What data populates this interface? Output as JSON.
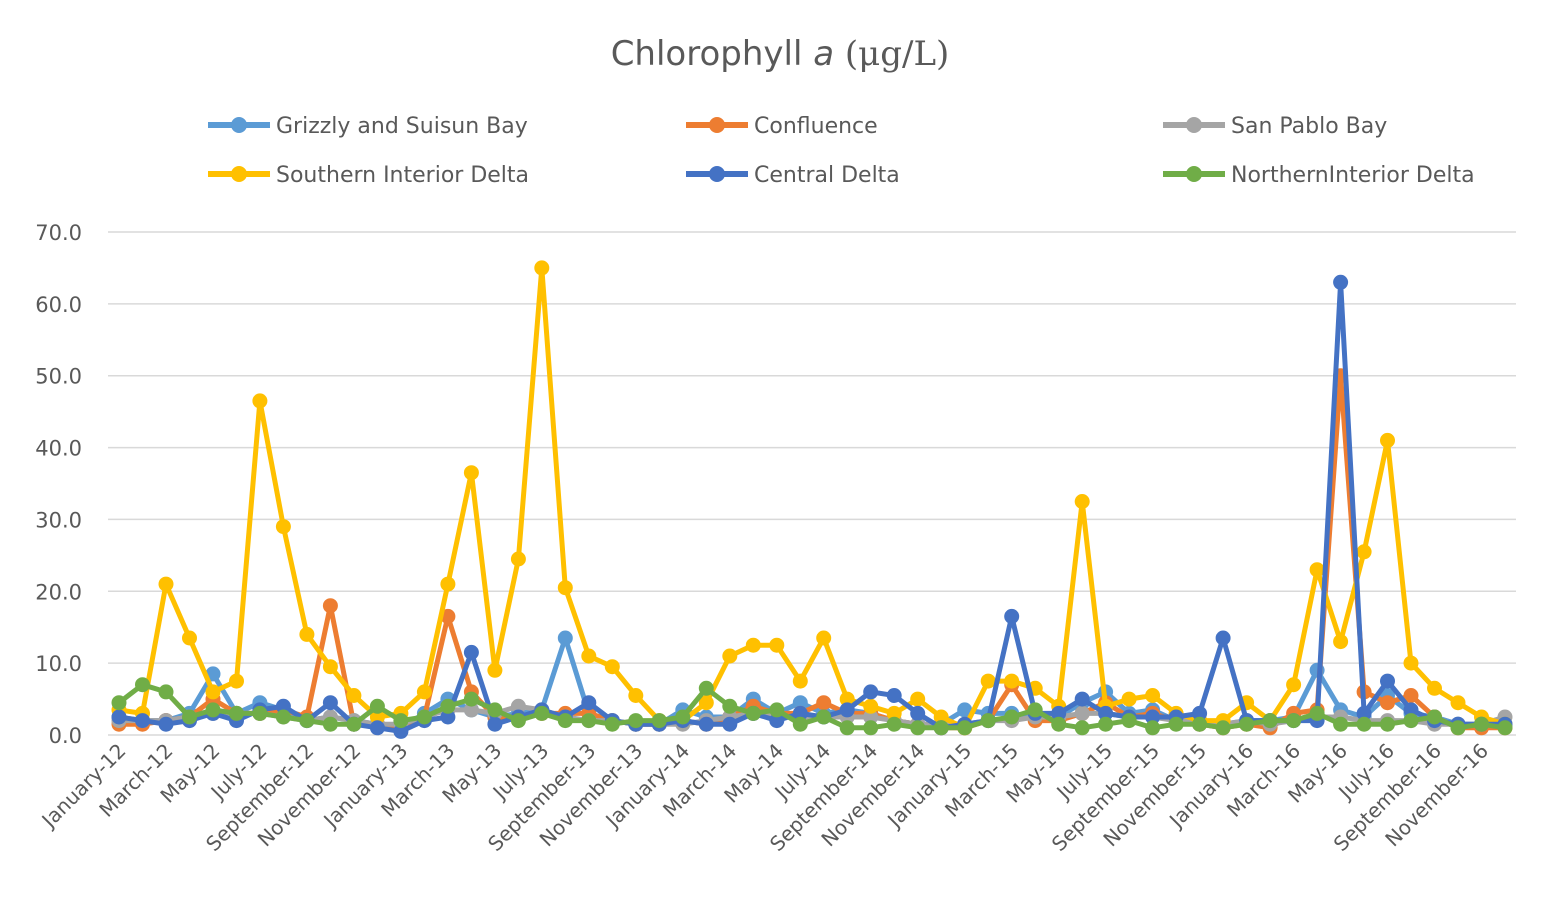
{
  "chart_data": {
    "type": "line",
    "title": {
      "prefix": "Chlorophyll ",
      "italic": "a",
      "unit": " (μg/L)"
    },
    "xlabel": "",
    "ylabel": "",
    "ylim": [
      0,
      70
    ],
    "yticks": [
      "0.0",
      "10.0",
      "20.0",
      "30.0",
      "40.0",
      "50.0",
      "60.0",
      "70.0"
    ],
    "grid": true,
    "legend_position": "top",
    "x": [
      "January-12",
      "February-12",
      "March-12",
      "April-12",
      "May-12",
      "June-12",
      "July-12",
      "August-12",
      "September-12",
      "October-12",
      "November-12",
      "December-12",
      "January-13",
      "February-13",
      "March-13",
      "April-13",
      "May-13",
      "June-13",
      "July-13",
      "August-13",
      "September-13",
      "October-13",
      "November-13",
      "December-13",
      "January-14",
      "February-14",
      "March-14",
      "April-14",
      "May-14",
      "June-14",
      "July-14",
      "August-14",
      "September-14",
      "October-14",
      "November-14",
      "December-14",
      "January-15",
      "February-15",
      "March-15",
      "April-15",
      "May-15",
      "June-15",
      "July-15",
      "August-15",
      "September-15",
      "October-15",
      "November-15",
      "December-15",
      "January-16",
      "February-16",
      "March-16",
      "April-16",
      "May-16",
      "June-16",
      "July-16",
      "August-16",
      "September-16",
      "October-16",
      "November-16",
      "December-16"
    ],
    "xtick_labels": [
      "January-12",
      "March-12",
      "May-12",
      "July-12",
      "September-12",
      "November-12",
      "January-13",
      "March-13",
      "May-13",
      "July-13",
      "September-13",
      "November-13",
      "January-14",
      "March-14",
      "May-14",
      "July-14",
      "September-14",
      "November-14",
      "January-15",
      "March-15",
      "May-15",
      "July-15",
      "September-15",
      "November-15",
      "January-16",
      "March-16",
      "May-16",
      "July-16",
      "September-16",
      "November-16"
    ],
    "series": [
      {
        "name": "Grizzly and Suisun Bay",
        "color": "#5B9BD5",
        "values": [
          2.5,
          2,
          2,
          3,
          8.5,
          3,
          4.5,
          3.5,
          2,
          2.5,
          2,
          1.5,
          1,
          3,
          5,
          3.5,
          2.5,
          3,
          3.5,
          13.5,
          3,
          2,
          1.5,
          1.5,
          3.5,
          2.5,
          2.5,
          5,
          3,
          4.5,
          3,
          3.5,
          3,
          2,
          1.5,
          1.5,
          3.5,
          3,
          3,
          2.5,
          2.5,
          4.5,
          6,
          3,
          3.5,
          2,
          1.5,
          1.5,
          2,
          2,
          2.5,
          9,
          3.5,
          2.5,
          5.5,
          3,
          2.5,
          1.5,
          1.5,
          1.5
        ]
      },
      {
        "name": "Confluence",
        "color": "#ED7D31",
        "values": [
          1.5,
          1.5,
          2,
          2.5,
          5,
          3,
          3,
          3.5,
          2.5,
          18,
          1.5,
          1.5,
          1,
          2.5,
          16.5,
          6,
          2.5,
          2.5,
          3,
          3,
          3,
          2,
          1.5,
          1.5,
          2,
          1.5,
          2.5,
          4,
          3,
          3,
          4.5,
          3,
          3,
          2,
          1.5,
          1,
          1,
          2,
          7,
          2,
          2,
          3,
          4.5,
          2.5,
          3,
          2,
          1.5,
          1,
          1.5,
          1,
          3,
          3.5,
          50,
          6,
          4.5,
          5.5,
          2.5,
          1,
          1,
          1
        ]
      },
      {
        "name": "San Pablo Bay",
        "color": "#A5A5A5",
        "values": [
          2,
          2,
          2,
          2.5,
          3,
          3,
          3,
          2.5,
          2,
          2.5,
          2,
          1.5,
          1.5,
          2.5,
          3.5,
          3.5,
          3,
          4,
          3.5,
          2.5,
          2,
          2,
          1.5,
          1.5,
          1.5,
          2,
          2.5,
          3,
          2.5,
          2.5,
          2.5,
          2.5,
          2.5,
          2,
          1.5,
          1.5,
          1.5,
          2,
          2,
          2.5,
          2.5,
          3,
          3,
          2.5,
          2.5,
          2,
          2,
          1.5,
          2,
          1.5,
          2,
          2.5,
          2.5,
          2,
          2,
          2,
          1.5,
          1.5,
          1.5,
          2.5
        ]
      },
      {
        "name": "Southern Interior Delta",
        "color": "#FFC000",
        "values": [
          3.5,
          3,
          21,
          13.5,
          6,
          7.5,
          46.5,
          29,
          14,
          9.5,
          5.5,
          2.5,
          3,
          6,
          21,
          36.5,
          9,
          24.5,
          65,
          20.5,
          11,
          9.5,
          5.5,
          2,
          2,
          4.5,
          11,
          12.5,
          12.5,
          7.5,
          13.5,
          5,
          4,
          3,
          5,
          2.5,
          1,
          7.5,
          7.5,
          6.5,
          4,
          32.5,
          4,
          5,
          5.5,
          3,
          2,
          2,
          4.5,
          2,
          7,
          23,
          13,
          25.5,
          41,
          10,
          6.5,
          4.5,
          2.5,
          1.5
        ]
      },
      {
        "name": "Central Delta",
        "color": "#4472C4",
        "values": [
          2.5,
          2,
          1.5,
          2,
          3,
          2,
          3.5,
          4,
          2,
          4.5,
          1.5,
          1,
          0.5,
          2,
          2.5,
          11.5,
          1.5,
          2.5,
          3.5,
          2.5,
          4.5,
          2,
          1.5,
          1.5,
          2,
          1.5,
          1.5,
          3,
          2,
          3,
          2.5,
          3.5,
          6,
          5.5,
          3,
          1,
          1.5,
          2,
          16.5,
          3,
          3,
          5,
          3,
          2.5,
          2.5,
          2.5,
          3,
          13.5,
          2,
          2,
          2,
          2,
          63,
          3,
          7.5,
          3.5,
          2,
          1.5,
          1.5,
          1.5
        ]
      },
      {
        "name": "NorthernInterior Delta",
        "color": "#70AD47",
        "values": [
          4.5,
          7,
          6,
          2.5,
          3.5,
          3,
          3,
          2.5,
          2,
          1.5,
          1.5,
          4,
          2,
          2.5,
          4,
          5,
          3.5,
          2,
          3,
          2,
          2,
          1.5,
          2,
          2,
          2.5,
          6.5,
          4,
          3,
          3.5,
          1.5,
          2.5,
          1,
          1,
          1.5,
          1,
          1,
          1,
          2,
          2.5,
          3.5,
          1.5,
          1,
          1.5,
          2,
          1,
          1.5,
          1.5,
          1,
          1.5,
          2,
          2,
          3,
          1.5,
          1.5,
          1.5,
          2,
          2.5,
          1,
          1.5,
          1
        ]
      }
    ]
  }
}
